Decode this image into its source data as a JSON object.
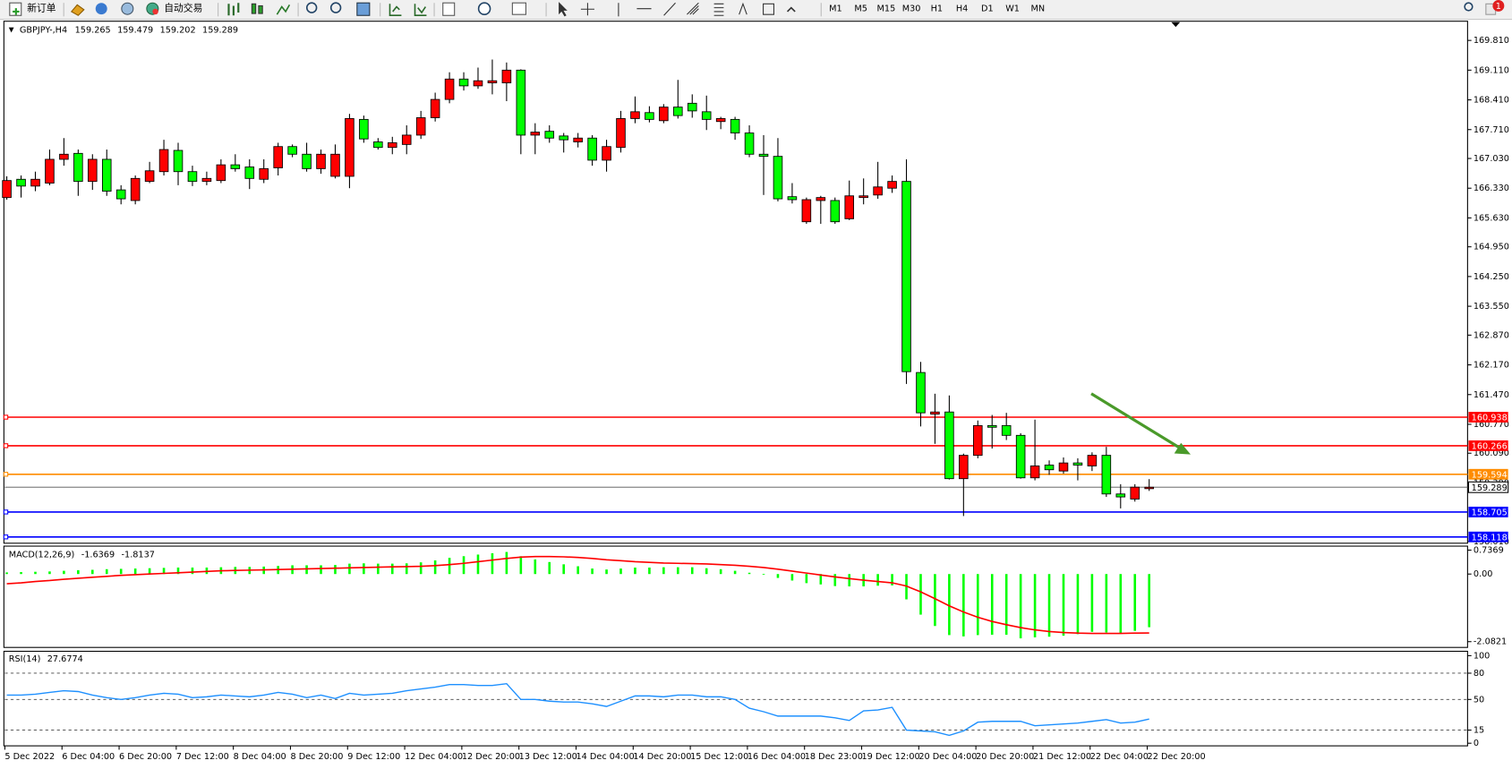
{
  "toolbar": {
    "new_order": "新订单",
    "auto_trading": "自动交易",
    "timeframes": [
      "M1",
      "M5",
      "M15",
      "M30",
      "H1",
      "H4",
      "D1",
      "W1",
      "MN"
    ],
    "badge": "1"
  },
  "chart_data": [
    {
      "type": "candlestick",
      "symbol": "GBPJPY-,H4",
      "bull_color": "#ff0000",
      "bear_color": "#00ff00",
      "categories": [
        "5 Dec 2022",
        null,
        null,
        null,
        "6 Dec 04:00",
        null,
        null,
        null,
        "6 Dec 20:00",
        null,
        null,
        null,
        "7 Dec 12:00",
        null,
        null,
        null,
        "8 Dec 04:00",
        null,
        null,
        null,
        "8 Dec 20:00",
        null,
        null,
        null,
        "9 Dec 12:00",
        null,
        null,
        null,
        "12 Dec 04:00",
        null,
        null,
        null,
        "12 Dec 20:00",
        null,
        null,
        null,
        "13 Dec 12:00",
        null,
        null,
        null,
        "14 Dec 04:00",
        null,
        null,
        null,
        "14 Dec 20:00",
        null,
        null,
        null,
        "15 Dec 12:00",
        null,
        null,
        null,
        "16 Dec 04:00",
        null,
        null,
        null,
        "18 Dec 23:00",
        null,
        null,
        null,
        "19 Dec 12:00",
        null,
        null,
        null,
        "20 Dec 04:00",
        null,
        null,
        null,
        "20 Dec 20:00",
        null,
        null,
        null,
        "21 Dec 12:00",
        null,
        null,
        null,
        "22 Dec 04:00",
        null,
        null,
        null,
        "22 Dec 20:00"
      ],
      "open": [
        166.11,
        166.54,
        166.38,
        166.45,
        167.01,
        167.15,
        166.49,
        167.01,
        166.29,
        166.04,
        166.49,
        166.72,
        167.22,
        166.72,
        166.49,
        166.51,
        166.88,
        166.83,
        166.54,
        166.81,
        167.31,
        167.13,
        166.79,
        166.61,
        166.61,
        167.95,
        167.42,
        167.29,
        167.36,
        167.58,
        167.99,
        168.42,
        168.9,
        168.74,
        168.81,
        168.81,
        169.11,
        167.58,
        167.67,
        167.56,
        167.42,
        167.51,
        166.99,
        167.29,
        167.97,
        168.11,
        167.92,
        168.24,
        168.33,
        168.13,
        167.9,
        167.95,
        167.63,
        167.13,
        167.08,
        166.13,
        165.54,
        166.04,
        166.04,
        165.61,
        166.11,
        166.17,
        166.33,
        166.49,
        161.99,
        161.01,
        161.06,
        159.49,
        160.04,
        160.74,
        160.74,
        160.51,
        159.51,
        159.81,
        159.67,
        159.86,
        159.79,
        160.04,
        159.13,
        159.01,
        159.265
      ],
      "high": [
        166.61,
        166.63,
        166.72,
        167.24,
        167.51,
        167.24,
        167.13,
        167.24,
        166.4,
        166.63,
        166.95,
        167.47,
        167.4,
        166.86,
        166.72,
        167.01,
        167.13,
        167.01,
        167.01,
        167.4,
        167.36,
        167.4,
        167.24,
        167.36,
        168.08,
        168.04,
        167.51,
        167.54,
        167.81,
        168.15,
        168.58,
        169.06,
        169.06,
        169.17,
        169.36,
        169.29,
        169.13,
        167.86,
        167.81,
        167.63,
        167.63,
        167.58,
        167.47,
        168.15,
        168.49,
        168.26,
        168.31,
        168.88,
        168.54,
        168.51,
        168.01,
        168.01,
        167.81,
        167.58,
        167.51,
        166.45,
        166.11,
        166.15,
        166.11,
        166.51,
        166.56,
        166.95,
        166.63,
        167.01,
        162.24,
        161.49,
        161.45,
        160.08,
        160.86,
        160.99,
        161.04,
        160.56,
        160.88,
        159.92,
        159.99,
        159.97,
        160.11,
        160.24,
        159.36,
        159.36,
        159.479
      ],
      "low": [
        166.06,
        166.11,
        166.26,
        166.4,
        166.86,
        166.15,
        166.29,
        166.15,
        165.95,
        165.95,
        166.45,
        166.63,
        166.4,
        166.38,
        166.4,
        166.45,
        166.72,
        166.31,
        166.45,
        166.63,
        167.06,
        166.72,
        166.67,
        166.56,
        166.33,
        167.4,
        167.24,
        167.13,
        167.13,
        167.49,
        167.9,
        168.33,
        168.63,
        168.67,
        168.54,
        168.38,
        167.13,
        167.13,
        167.4,
        167.17,
        167.29,
        166.86,
        166.72,
        167.17,
        167.86,
        167.88,
        167.86,
        167.97,
        167.99,
        167.7,
        167.72,
        167.47,
        167.06,
        166.17,
        166.02,
        165.97,
        165.49,
        165.49,
        165.49,
        165.58,
        165.95,
        166.08,
        166.22,
        161.72,
        160.72,
        160.31,
        159.47,
        158.61,
        159.97,
        160.2,
        160.4,
        159.49,
        159.45,
        159.58,
        159.61,
        159.45,
        159.67,
        159.06,
        158.79,
        158.95,
        159.202
      ],
      "close": [
        166.51,
        166.38,
        166.54,
        167.01,
        167.13,
        166.49,
        167.01,
        166.26,
        166.08,
        166.56,
        166.74,
        167.24,
        166.72,
        166.49,
        166.56,
        166.88,
        166.79,
        166.56,
        166.79,
        167.31,
        167.13,
        166.79,
        167.13,
        167.13,
        167.97,
        167.49,
        167.29,
        167.4,
        167.58,
        167.99,
        168.42,
        168.9,
        168.74,
        168.86,
        168.86,
        169.11,
        167.58,
        167.65,
        167.51,
        167.47,
        167.51,
        166.99,
        167.31,
        167.97,
        168.13,
        167.95,
        168.24,
        168.04,
        168.15,
        167.95,
        167.97,
        167.63,
        167.13,
        167.08,
        166.08,
        166.06,
        166.06,
        166.11,
        165.54,
        166.15,
        166.15,
        166.36,
        166.49,
        162.01,
        161.04,
        161.06,
        159.49,
        160.04,
        160.74,
        160.7,
        160.51,
        159.51,
        159.79,
        159.7,
        159.86,
        159.81,
        160.04,
        159.13,
        159.06,
        159.29,
        159.289
      ],
      "ylim": [
        157.97,
        170.08
      ],
      "yticks": [
        {
          "value": 169.81,
          "label": "169.810"
        },
        {
          "value": 169.11,
          "label": "169.110"
        },
        {
          "value": 168.41,
          "label": "168.410"
        },
        {
          "value": 167.71,
          "label": "167.710"
        },
        {
          "value": 167.03,
          "label": "167.030"
        },
        {
          "value": 166.33,
          "label": "166.330"
        },
        {
          "value": 165.63,
          "label": "165.630"
        },
        {
          "value": 164.95,
          "label": "164.950"
        },
        {
          "value": 164.25,
          "label": "164.250"
        },
        {
          "value": 163.55,
          "label": "163.550"
        },
        {
          "value": 162.87,
          "label": "162.870"
        },
        {
          "value": 162.17,
          "label": "162.170"
        },
        {
          "value": 161.47,
          "label": "161.470"
        },
        {
          "value": 160.77,
          "label": "160.770"
        },
        {
          "value": 160.09,
          "label": "160.090"
        },
        {
          "value": 159.39,
          "label": "159.390"
        },
        {
          "value": 158.01,
          "label": "158.010"
        }
      ],
      "levels": [
        {
          "value": 160.938,
          "color": "#ff0000"
        },
        {
          "value": 160.266,
          "color": "#ff0000"
        },
        {
          "value": 159.594,
          "color": "#ff8c00"
        },
        {
          "value": 158.705,
          "color": "#0000ff"
        },
        {
          "value": 158.118,
          "color": "#0000ff"
        }
      ]
    },
    {
      "type": "macd",
      "title": "MACD(12,26,9)",
      "series": [
        {
          "color": "#00ff00",
          "values": [
            0.05,
            0.06,
            0.07,
            0.08,
            0.1,
            0.12,
            0.13,
            0.15,
            0.16,
            0.17,
            0.18,
            0.19,
            0.2,
            0.2,
            0.2,
            0.21,
            0.22,
            0.22,
            0.23,
            0.25,
            0.27,
            0.27,
            0.27,
            0.28,
            0.32,
            0.33,
            0.32,
            0.32,
            0.33,
            0.36,
            0.42,
            0.5,
            0.55,
            0.6,
            0.64,
            0.68,
            0.55,
            0.45,
            0.37,
            0.3,
            0.24,
            0.17,
            0.14,
            0.17,
            0.2,
            0.2,
            0.21,
            0.21,
            0.21,
            0.18,
            0.15,
            0.1,
            0.04,
            -0.02,
            -0.12,
            -0.2,
            -0.28,
            -0.32,
            -0.37,
            -0.38,
            -0.38,
            -0.36,
            -0.35,
            -0.78,
            -1.25,
            -1.6,
            -1.88,
            -1.92,
            -1.88,
            -1.87,
            -1.87,
            -1.98,
            -1.95,
            -1.93,
            -1.9,
            -1.85,
            -1.78,
            -1.8,
            -1.82,
            -1.75,
            -1.6369
          ]
        },
        {
          "color": "#ff0000",
          "values": [
            -0.3,
            -0.27,
            -0.23,
            -0.2,
            -0.16,
            -0.13,
            -0.1,
            -0.07,
            -0.04,
            -0.02,
            0.0,
            0.02,
            0.04,
            0.06,
            0.08,
            0.1,
            0.11,
            0.12,
            0.13,
            0.14,
            0.15,
            0.16,
            0.17,
            0.18,
            0.19,
            0.2,
            0.21,
            0.22,
            0.23,
            0.24,
            0.26,
            0.29,
            0.33,
            0.38,
            0.43,
            0.48,
            0.52,
            0.54,
            0.54,
            0.53,
            0.51,
            0.48,
            0.44,
            0.41,
            0.38,
            0.36,
            0.34,
            0.33,
            0.32,
            0.31,
            0.29,
            0.27,
            0.24,
            0.2,
            0.15,
            0.09,
            0.03,
            -0.03,
            -0.09,
            -0.14,
            -0.19,
            -0.23,
            -0.27,
            -0.37,
            -0.55,
            -0.76,
            -0.98,
            -1.17,
            -1.33,
            -1.46,
            -1.56,
            -1.65,
            -1.72,
            -1.77,
            -1.8,
            -1.82,
            -1.83,
            -1.83,
            -1.83,
            -1.82,
            -1.8137
          ]
        }
      ],
      "ylim": [
        -2.26,
        0.86
      ],
      "yticks": [
        0.7369,
        {
          "value": 0,
          "label": "0.00"
        },
        -2.0821
      ]
    },
    {
      "type": "line",
      "title": "RSI(14)",
      "color": "#1e90ff",
      "values": [
        55,
        55,
        56,
        58,
        60,
        59,
        55,
        52,
        50,
        52,
        55,
        57,
        56,
        52,
        53,
        55,
        54,
        53,
        55,
        58,
        56,
        52,
        55,
        51,
        57,
        55,
        56,
        57,
        60,
        62,
        64,
        67,
        67,
        66,
        66,
        68,
        50,
        50,
        48,
        47,
        47,
        45,
        42,
        48,
        54,
        54,
        53,
        55,
        55,
        53,
        53,
        50,
        40,
        36,
        31,
        31,
        31,
        31,
        29,
        26,
        37,
        38,
        41,
        15,
        14,
        13,
        9,
        14,
        24,
        25,
        25,
        25,
        20,
        21,
        22,
        23,
        25,
        27,
        23,
        24,
        27.6774
      ],
      "ylim": [
        -3,
        105
      ],
      "yticks": [
        100,
        80,
        50,
        15,
        0
      ],
      "levels": [
        80,
        50,
        15
      ]
    }
  ]
}
